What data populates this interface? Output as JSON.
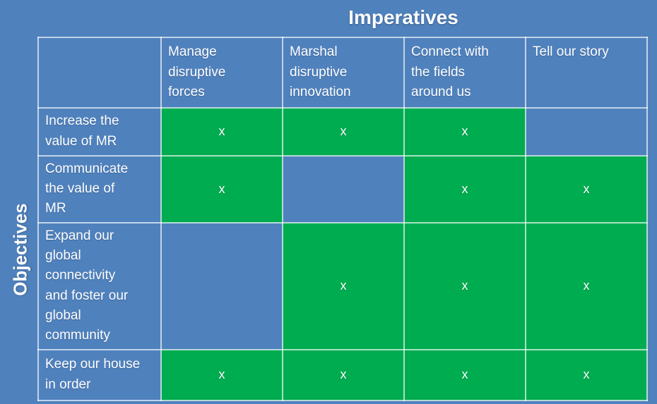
{
  "title": "Imperatives",
  "row_axis_label": "Objectives",
  "colors": {
    "background": "#4F81BD",
    "marked_cell": "#00AC50",
    "unmarked_cell": "#4F81BD",
    "grid_border": "rgba(255,255,255,0.65)",
    "text": "#FFFFFF"
  },
  "matrix": {
    "mark": "x",
    "corner_label": "",
    "column_headers": [
      "Manage\ndisruptive\nforces",
      "Marshal\ndisruptive\ninnovation",
      "Connect with\nthe fields\naround us",
      "Tell our story"
    ],
    "rows": [
      {
        "label": "Increase the\nvalue of MR",
        "cells": [
          "x",
          "x",
          "x",
          ""
        ]
      },
      {
        "label": "Communicate\nthe value of\nMR",
        "cells": [
          "x",
          "",
          "x",
          "x"
        ]
      },
      {
        "label": "Expand our\nglobal\nconnectivity\nand foster our\nglobal\ncommunity",
        "cells": [
          "",
          "x",
          "x",
          "x"
        ]
      },
      {
        "label": "Keep our house\nin order",
        "cells": [
          "x",
          "x",
          "x",
          "x"
        ]
      }
    ]
  }
}
